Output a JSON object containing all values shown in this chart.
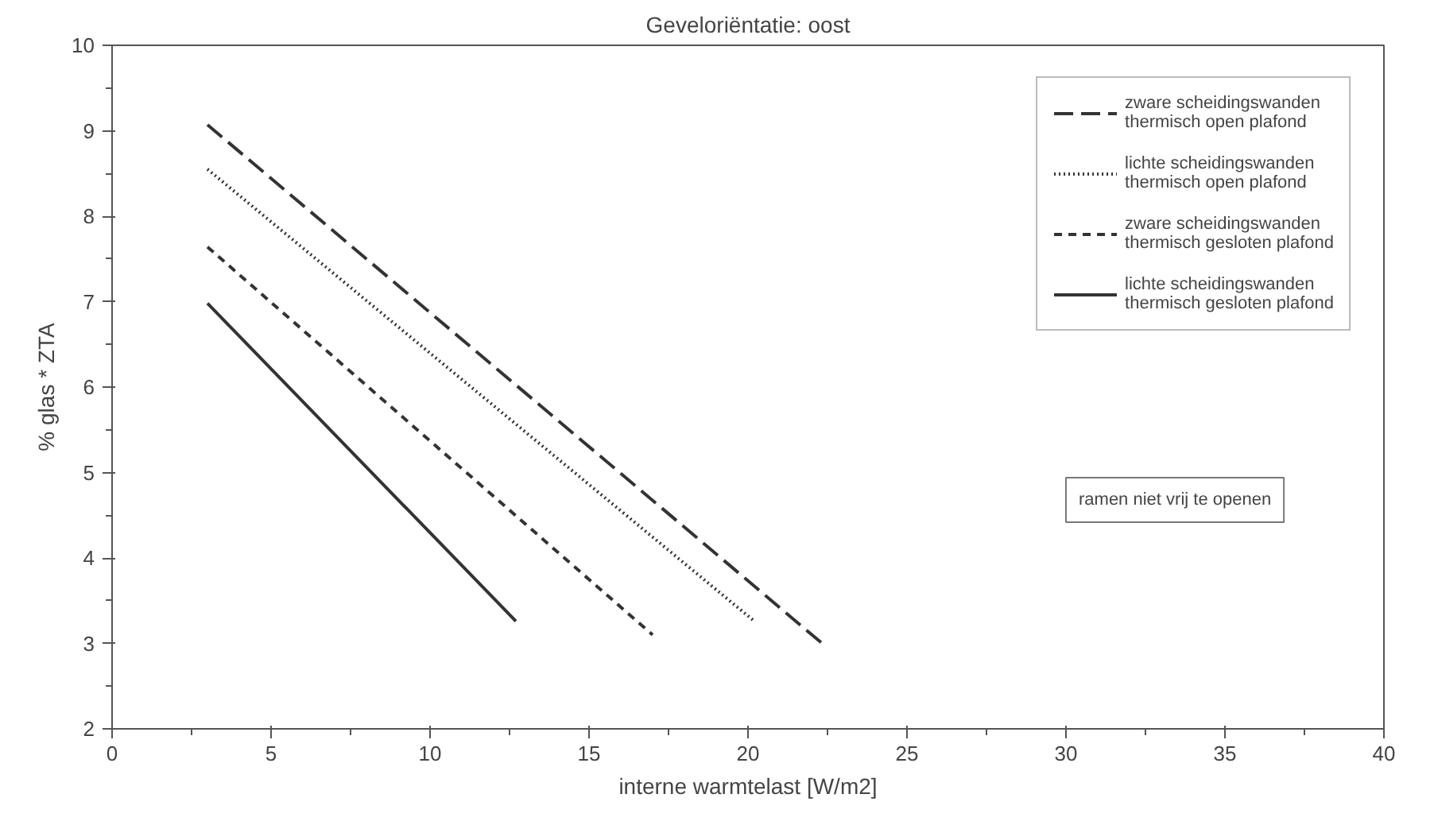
{
  "chart_data": {
    "type": "line",
    "title": "Geveloriëntatie: oost",
    "xlabel": "interne warmtelast [W/m2]",
    "ylabel": "% glas * ZTA",
    "xlim": [
      0,
      40
    ],
    "xticks": [
      0,
      5,
      10,
      15,
      20,
      25,
      30,
      35,
      40
    ],
    "ylim": [
      2,
      10
    ],
    "yticks": [
      2,
      3,
      4,
      5,
      6,
      7,
      8,
      9,
      10
    ],
    "grid": false,
    "legend": "top right",
    "series": [
      {
        "name": "zware scheidingswanden thermisch open plafond",
        "color": "#333333",
        "line_style": "dashed",
        "x": [
          3,
          22.3
        ],
        "values": [
          9.07,
          3.01
        ]
      },
      {
        "name": "lichte scheidingswanden thermisch open plafond",
        "color": "#333333",
        "line_style": "dotted",
        "x": [
          3,
          20.2
        ],
        "values": [
          8.55,
          3.26
        ]
      },
      {
        "name": "zware scheidingswanden thermisch gesloten plafond",
        "color": "#333333",
        "line_style": "shortdash",
        "x": [
          3,
          17.0
        ],
        "values": [
          7.64,
          3.1
        ]
      },
      {
        "name": "lichte scheidingswanden thermisch gesloten plafond",
        "color": "#333333",
        "line_style": "solid",
        "x": [
          3,
          12.7
        ],
        "values": [
          6.98,
          3.26
        ]
      }
    ],
    "annotations": [
      "ramen niet vrij te openen"
    ]
  }
}
